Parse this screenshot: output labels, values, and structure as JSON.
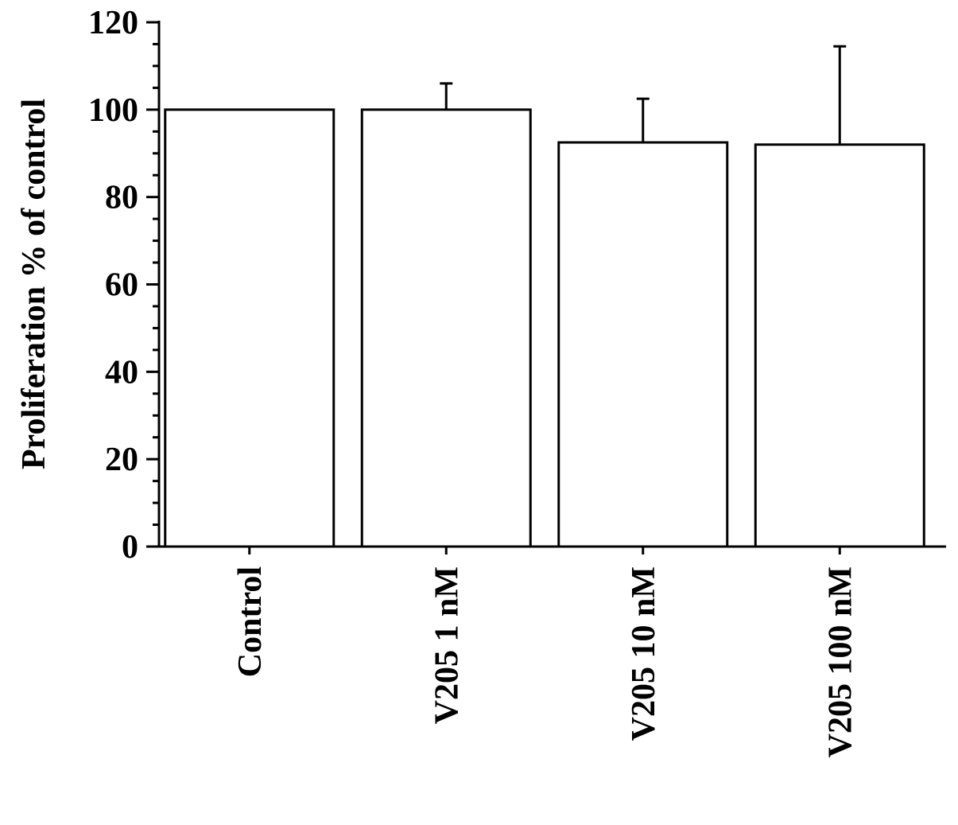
{
  "chart_data": {
    "type": "bar",
    "categories": [
      "Control",
      "V205 1 nM",
      "V205 10 nM",
      "V205 100 nM"
    ],
    "values": [
      100,
      100,
      92.5,
      92
    ],
    "error_upper": [
      0,
      6,
      10,
      22.5
    ],
    "ylabel": "Proliferation % of control",
    "xlabel": "",
    "ylim": [
      0,
      120
    ],
    "yticks": [
      "0",
      "20",
      "40",
      "60",
      "80",
      "100",
      "120"
    ],
    "grid": false,
    "bar_fill": "#ffffff",
    "bar_stroke": "#000000"
  }
}
